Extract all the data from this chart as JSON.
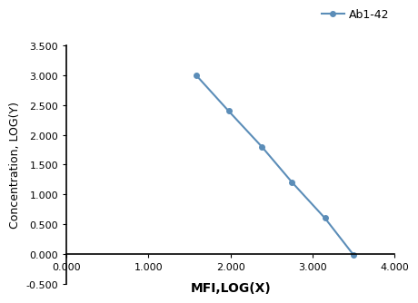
{
  "x": [
    1.58,
    1.975,
    2.38,
    2.75,
    3.15,
    3.5
  ],
  "y": [
    3.0,
    2.4,
    1.8,
    1.2,
    0.6,
    -0.02
  ],
  "line_color": "#5B8DB8",
  "marker_color": "#5B8DB8",
  "marker_style": "o",
  "marker_size": 4,
  "line_width": 1.5,
  "legend_label": "Ab1-42",
  "xlabel": "MFI,LOG(X)",
  "ylabel": "Concentration, LOG(Y)",
  "xlim": [
    0.0,
    4.0
  ],
  "ylim": [
    -0.5,
    3.5
  ],
  "xticks": [
    0.0,
    1.0,
    2.0,
    3.0,
    4.0
  ],
  "yticks": [
    -0.5,
    0.0,
    0.5,
    1.0,
    1.5,
    2.0,
    2.5,
    3.0,
    3.5
  ],
  "xlabel_fontsize": 10,
  "ylabel_fontsize": 9,
  "legend_fontsize": 9,
  "tick_fontsize": 8,
  "background_color": "#ffffff"
}
